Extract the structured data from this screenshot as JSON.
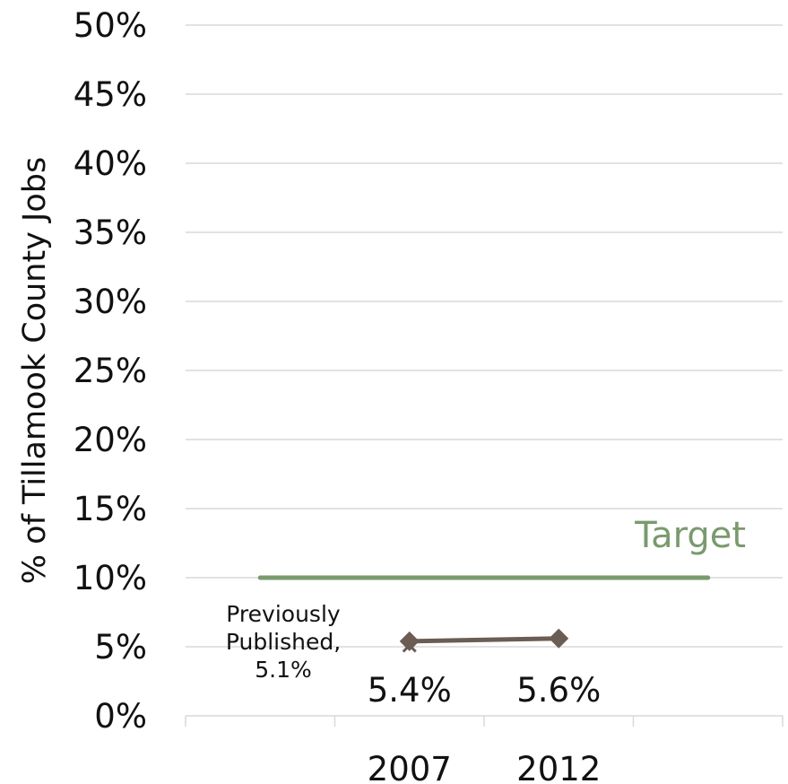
{
  "chart_data": {
    "type": "line",
    "title": "",
    "xlabel": "",
    "ylabel": "% of Tillamook County Jobs",
    "ylim": [
      0,
      0.5
    ],
    "yticks": [
      0,
      0.05,
      0.1,
      0.15,
      0.2,
      0.25,
      0.3,
      0.35,
      0.4,
      0.45,
      0.5
    ],
    "ytick_labels": [
      "0%",
      "5%",
      "10%",
      "15%",
      "20%",
      "25%",
      "30%",
      "35%",
      "40%",
      "45%",
      "50%"
    ],
    "categories": [
      "",
      "2007",
      "2012",
      ""
    ],
    "grid": true,
    "series": [
      {
        "values": [
          null,
          0.054,
          0.056,
          null
        ],
        "data_labels": [
          "",
          "5.4%",
          "5.6%",
          ""
        ],
        "marker": "diamond",
        "color": "#6b5d54"
      }
    ],
    "target": {
      "name": "Target",
      "value": 0.1,
      "color": "#7a9a6e"
    },
    "annotation": {
      "lines": [
        "Previously",
        "Published,",
        "5.1%"
      ],
      "value": 0.051,
      "category": "2007",
      "marker": "x"
    }
  }
}
